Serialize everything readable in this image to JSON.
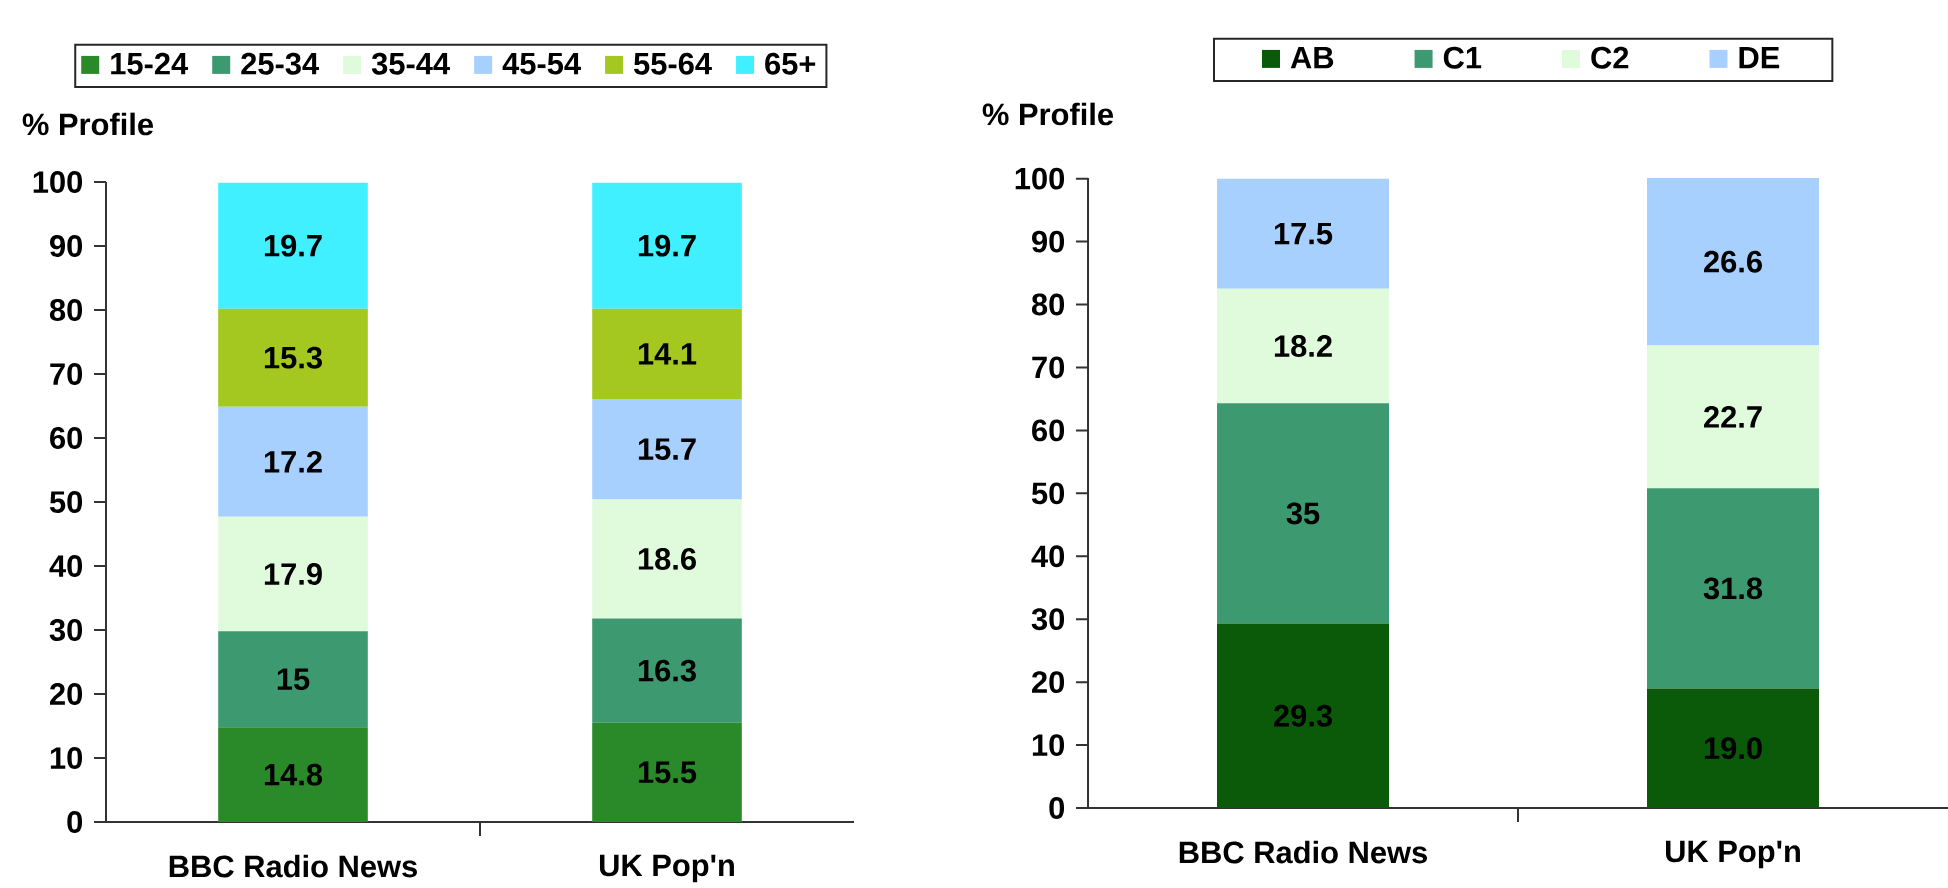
{
  "chart_data": [
    {
      "type": "bar",
      "stacked": true,
      "ylabel": "% Profile",
      "legend": "top",
      "categories": [
        "BBC Radio News",
        "UK Pop'n"
      ],
      "ylim": [
        0,
        100
      ],
      "yticks": [
        0,
        10,
        20,
        30,
        40,
        50,
        60,
        70,
        80,
        90,
        100
      ],
      "series": [
        {
          "name": "15-24",
          "color": "#2a8a2a",
          "values": [
            14.8,
            15.5
          ],
          "value_labels": [
            "14.8",
            "15.5"
          ]
        },
        {
          "name": "25-34",
          "color": "#3d9970",
          "values": [
            15,
            16.3
          ],
          "value_labels": [
            "15",
            "16.3"
          ]
        },
        {
          "name": "35-44",
          "color": "#e0fadc",
          "values": [
            17.9,
            18.6
          ],
          "value_labels": [
            "17.9",
            "18.6"
          ]
        },
        {
          "name": "45-54",
          "color": "#a8d0ff",
          "values": [
            17.2,
            15.7
          ],
          "value_labels": [
            "17.2",
            "15.7"
          ]
        },
        {
          "name": "55-64",
          "color": "#a4c820",
          "values": [
            15.3,
            14.1
          ],
          "value_labels": [
            "15.3",
            "14.1"
          ]
        },
        {
          "name": "65+",
          "color": "#40f0ff",
          "values": [
            19.7,
            19.7
          ],
          "value_labels": [
            "19.7",
            "19.7"
          ]
        }
      ]
    },
    {
      "type": "bar",
      "stacked": true,
      "ylabel": "% Profile",
      "legend": "top",
      "categories": [
        "BBC Radio News",
        "UK Pop'n"
      ],
      "ylim": [
        0,
        100.1
      ],
      "yticks": [
        0,
        10,
        20,
        30,
        40,
        50,
        60,
        70,
        80,
        90,
        100
      ],
      "series": [
        {
          "name": "AB",
          "color": "#0a5a0a",
          "values": [
            29.3,
            19.0
          ],
          "value_labels": [
            "29.3",
            "19.0"
          ]
        },
        {
          "name": "C1",
          "color": "#3d9970",
          "values": [
            35,
            31.8
          ],
          "value_labels": [
            "35",
            "31.8"
          ]
        },
        {
          "name": "C2",
          "color": "#e0fadc",
          "values": [
            18.2,
            22.7
          ],
          "value_labels": [
            "18.2",
            "22.7"
          ]
        },
        {
          "name": "DE",
          "color": "#a8d0ff",
          "values": [
            17.5,
            26.6
          ],
          "value_labels": [
            "17.5",
            "26.6"
          ]
        }
      ]
    }
  ]
}
